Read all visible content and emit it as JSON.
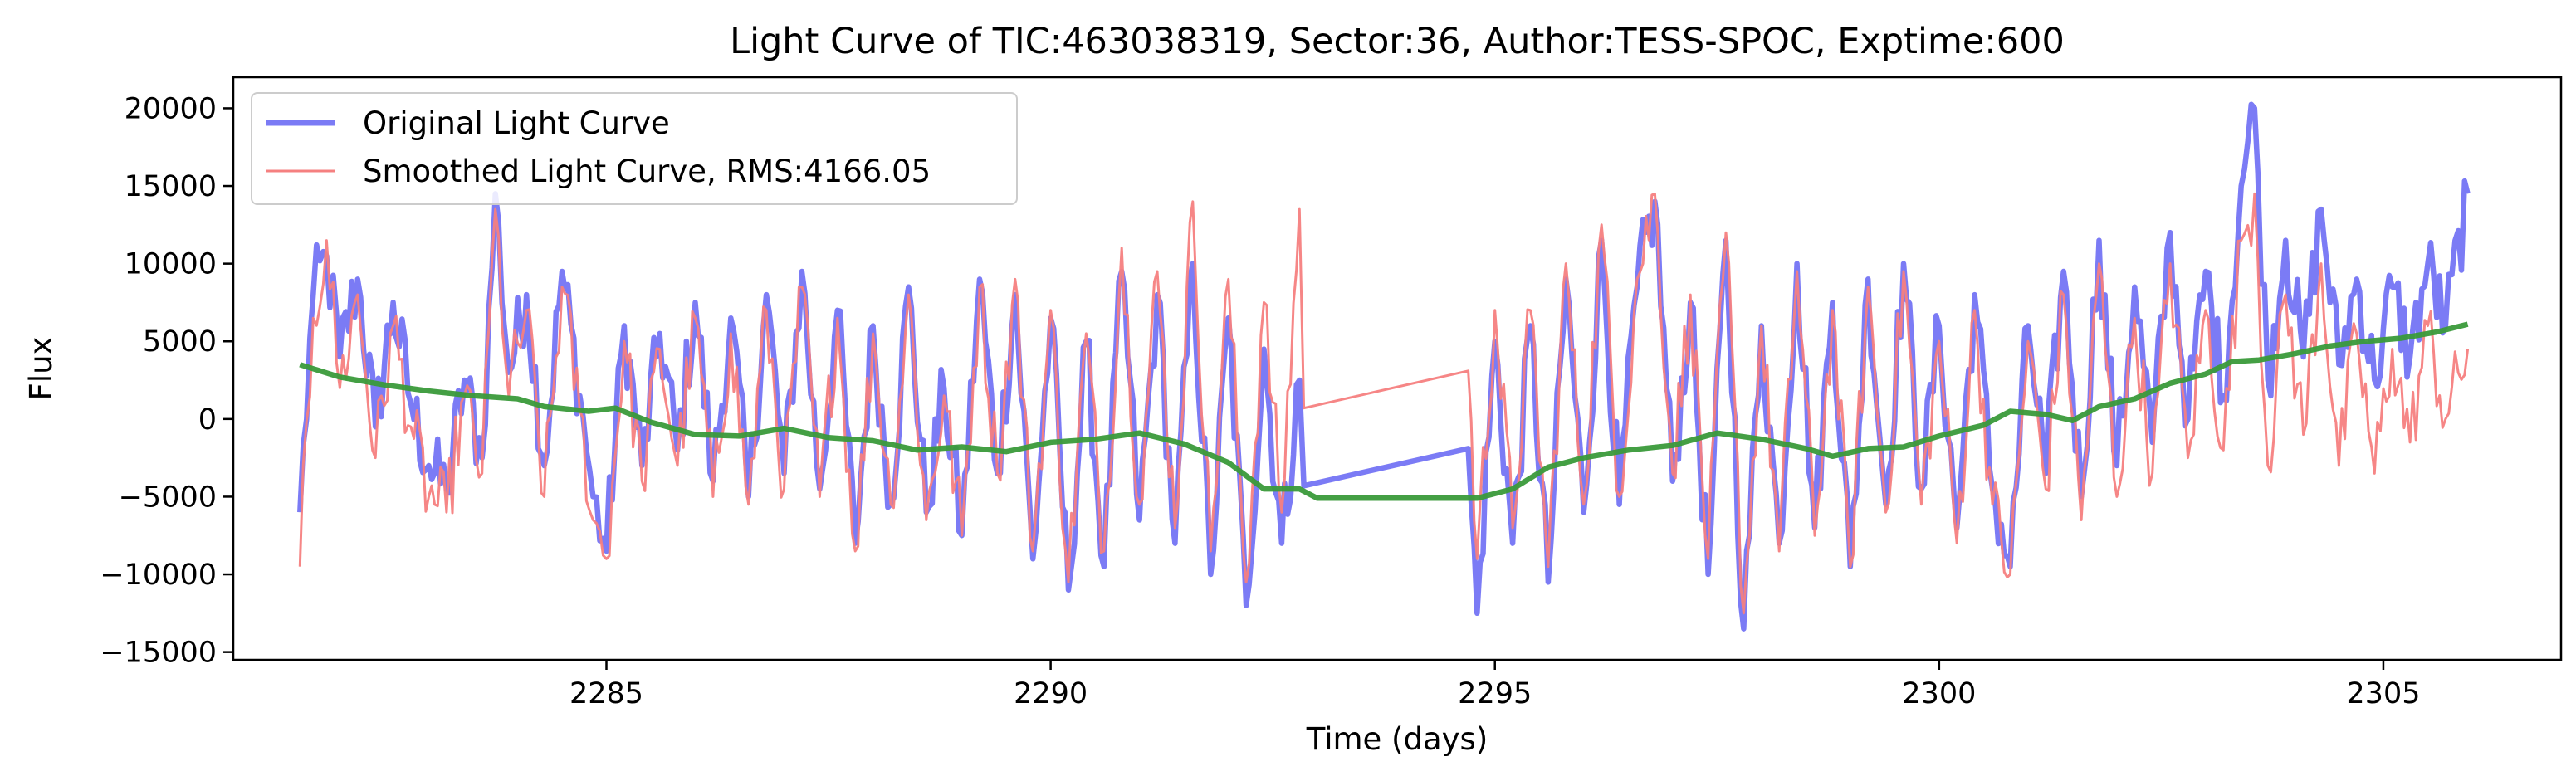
{
  "chart_data": {
    "type": "line",
    "title": "Light Curve of TIC:463038319, Sector:36, Author:TESS-SPOC, Exptime:600",
    "xlabel": "Time (days)",
    "ylabel": "Flux",
    "xlim": [
      2280.8,
      2307.0
    ],
    "ylim": [
      -15500,
      22000
    ],
    "xticks": [
      2285,
      2290,
      2295,
      2300,
      2305
    ],
    "xtick_labels": [
      "2285",
      "2290",
      "2295",
      "2300",
      "2305"
    ],
    "yticks": [
      -15000,
      -10000,
      -5000,
      0,
      5000,
      10000,
      15000,
      20000
    ],
    "ytick_labels": [
      "−15000",
      "−10000",
      "−5000",
      "0",
      "5000",
      "10000",
      "15000",
      "20000"
    ],
    "grid": false,
    "legend_position": "top-left",
    "series": [
      {
        "name": "Original Light Curve",
        "color": "#7b7bf5",
        "points": [
          [
            2281.55,
            -6000
          ],
          [
            2281.7,
            8000
          ],
          [
            2281.85,
            10500
          ],
          [
            2282.0,
            4000
          ],
          [
            2282.2,
            9000
          ],
          [
            2282.4,
            -500
          ],
          [
            2282.6,
            7500
          ],
          [
            2282.8,
            1000
          ],
          [
            2283.0,
            -3000
          ],
          [
            2283.2,
            -4500
          ],
          [
            2283.4,
            2500
          ],
          [
            2283.6,
            -2500
          ],
          [
            2283.75,
            14500
          ],
          [
            2283.9,
            3000
          ],
          [
            2284.1,
            8000
          ],
          [
            2284.3,
            -3000
          ],
          [
            2284.5,
            9500
          ],
          [
            2284.7,
            1500
          ],
          [
            2284.85,
            -5000
          ],
          [
            2285.0,
            -8500
          ],
          [
            2285.2,
            6000
          ],
          [
            2285.4,
            -3000
          ],
          [
            2285.6,
            5500
          ],
          [
            2285.8,
            -2000
          ],
          [
            2286.0,
            7500
          ],
          [
            2286.2,
            -4000
          ],
          [
            2286.4,
            6500
          ],
          [
            2286.6,
            -5000
          ],
          [
            2286.8,
            8000
          ],
          [
            2287.0,
            -3500
          ],
          [
            2287.2,
            9500
          ],
          [
            2287.4,
            -4500
          ],
          [
            2287.6,
            7000
          ],
          [
            2287.8,
            -8000
          ],
          [
            2288.0,
            6000
          ],
          [
            2288.2,
            -5500
          ],
          [
            2288.4,
            8500
          ],
          [
            2288.6,
            -6000
          ],
          [
            2288.8,
            2000
          ],
          [
            2289.0,
            -7500
          ],
          [
            2289.2,
            9000
          ],
          [
            2289.4,
            -3500
          ],
          [
            2289.6,
            8000
          ],
          [
            2289.8,
            -9000
          ],
          [
            2290.0,
            6500
          ],
          [
            2290.2,
            -11000
          ],
          [
            2290.4,
            5000
          ],
          [
            2290.6,
            -9500
          ],
          [
            2290.8,
            9500
          ],
          [
            2291.0,
            -6500
          ],
          [
            2291.2,
            8000
          ],
          [
            2291.4,
            -8000
          ],
          [
            2291.6,
            10000
          ],
          [
            2291.8,
            -10000
          ],
          [
            2292.0,
            6500
          ],
          [
            2292.2,
            -12000
          ],
          [
            2292.4,
            4500
          ],
          [
            2292.6,
            -8000
          ],
          [
            2292.8,
            2500
          ],
          [
            2292.85,
            -4300
          ],
          [
            2294.7,
            -1900
          ],
          [
            2294.8,
            -12500
          ],
          [
            2295.0,
            5000
          ],
          [
            2295.2,
            -8000
          ],
          [
            2295.4,
            6000
          ],
          [
            2295.6,
            -10500
          ],
          [
            2295.8,
            9000
          ],
          [
            2296.0,
            -6000
          ],
          [
            2296.2,
            11500
          ],
          [
            2296.4,
            -5500
          ],
          [
            2296.6,
            8500
          ],
          [
            2296.8,
            14000
          ],
          [
            2297.0,
            -4000
          ],
          [
            2297.2,
            7500
          ],
          [
            2297.4,
            -10000
          ],
          [
            2297.6,
            11500
          ],
          [
            2297.8,
            -13500
          ],
          [
            2298.0,
            6000
          ],
          [
            2298.2,
            -8000
          ],
          [
            2298.4,
            10000
          ],
          [
            2298.6,
            -7000
          ],
          [
            2298.8,
            7500
          ],
          [
            2299.0,
            -9500
          ],
          [
            2299.2,
            9000
          ],
          [
            2299.4,
            -5500
          ],
          [
            2299.6,
            10000
          ],
          [
            2299.8,
            -4500
          ],
          [
            2300.0,
            6000
          ],
          [
            2300.2,
            -7000
          ],
          [
            2300.4,
            8000
          ],
          [
            2300.6,
            -4500
          ],
          [
            2300.8,
            -9500
          ],
          [
            2301.0,
            6000
          ],
          [
            2301.2,
            -3500
          ],
          [
            2301.4,
            9500
          ],
          [
            2301.6,
            -5000
          ],
          [
            2301.8,
            11500
          ],
          [
            2302.0,
            -3000
          ],
          [
            2302.2,
            8500
          ],
          [
            2302.4,
            -1500
          ],
          [
            2302.6,
            12000
          ],
          [
            2302.8,
            0
          ],
          [
            2303.0,
            9500
          ],
          [
            2303.2,
            1500
          ],
          [
            2303.4,
            15000
          ],
          [
            2303.55,
            20000
          ],
          [
            2303.7,
            2500
          ],
          [
            2303.9,
            11500
          ],
          [
            2304.1,
            4000
          ],
          [
            2304.3,
            13500
          ],
          [
            2304.5,
            3500
          ],
          [
            2304.7,
            9000
          ],
          [
            2304.9,
            2500
          ],
          [
            2305.1,
            8500
          ],
          [
            2305.3,
            4000
          ],
          [
            2305.5,
            10000
          ],
          [
            2305.7,
            6000
          ],
          [
            2305.95,
            14500
          ]
        ]
      },
      {
        "name": "Smoothed Light Curve, RMS:4166.05",
        "color": "#f58080",
        "points": [
          [
            2281.55,
            -9500
          ],
          [
            2281.7,
            6500
          ],
          [
            2281.85,
            11500
          ],
          [
            2282.0,
            2000
          ],
          [
            2282.2,
            8000
          ],
          [
            2282.4,
            -2500
          ],
          [
            2282.6,
            6000
          ],
          [
            2282.8,
            -500
          ],
          [
            2283.0,
            -5000
          ],
          [
            2283.2,
            -6000
          ],
          [
            2283.4,
            1500
          ],
          [
            2283.6,
            -3500
          ],
          [
            2283.75,
            13500
          ],
          [
            2283.9,
            1500
          ],
          [
            2284.1,
            7000
          ],
          [
            2284.3,
            -5000
          ],
          [
            2284.5,
            8500
          ],
          [
            2284.7,
            500
          ],
          [
            2284.85,
            -6500
          ],
          [
            2285.0,
            -9000
          ],
          [
            2285.2,
            5000
          ],
          [
            2285.4,
            -4000
          ],
          [
            2285.6,
            4500
          ],
          [
            2285.8,
            -3000
          ],
          [
            2286.0,
            6500
          ],
          [
            2286.2,
            -5000
          ],
          [
            2286.4,
            5500
          ],
          [
            2286.6,
            -5500
          ],
          [
            2286.8,
            7000
          ],
          [
            2287.0,
            -4500
          ],
          [
            2287.2,
            8500
          ],
          [
            2287.4,
            -5000
          ],
          [
            2287.6,
            6500
          ],
          [
            2287.8,
            -8500
          ],
          [
            2288.0,
            5500
          ],
          [
            2288.2,
            -5500
          ],
          [
            2288.4,
            8000
          ],
          [
            2288.6,
            -6500
          ],
          [
            2288.8,
            1500
          ],
          [
            2289.0,
            -7500
          ],
          [
            2289.2,
            8500
          ],
          [
            2289.4,
            -3500
          ],
          [
            2289.6,
            9000
          ],
          [
            2289.8,
            -8500
          ],
          [
            2290.0,
            7000
          ],
          [
            2290.2,
            -10500
          ],
          [
            2290.4,
            5500
          ],
          [
            2290.6,
            -8500
          ],
          [
            2290.8,
            11000
          ],
          [
            2291.0,
            -5500
          ],
          [
            2291.2,
            9500
          ],
          [
            2291.4,
            -7000
          ],
          [
            2291.6,
            14000
          ],
          [
            2291.8,
            -8500
          ],
          [
            2292.0,
            9000
          ],
          [
            2292.2,
            -10500
          ],
          [
            2292.4,
            7500
          ],
          [
            2292.6,
            -6000
          ],
          [
            2292.8,
            13500
          ],
          [
            2292.85,
            700
          ],
          [
            2294.7,
            3100
          ],
          [
            2294.8,
            -9000
          ],
          [
            2295.0,
            7000
          ],
          [
            2295.2,
            -7000
          ],
          [
            2295.4,
            7000
          ],
          [
            2295.6,
            -9500
          ],
          [
            2295.8,
            10000
          ],
          [
            2296.0,
            -5500
          ],
          [
            2296.2,
            12500
          ],
          [
            2296.4,
            -5000
          ],
          [
            2296.6,
            9000
          ],
          [
            2296.8,
            14500
          ],
          [
            2297.0,
            -3500
          ],
          [
            2297.2,
            8000
          ],
          [
            2297.4,
            -9000
          ],
          [
            2297.6,
            12000
          ],
          [
            2297.8,
            -12500
          ],
          [
            2298.0,
            6000
          ],
          [
            2298.2,
            -8500
          ],
          [
            2298.4,
            9500
          ],
          [
            2298.6,
            -7500
          ],
          [
            2298.8,
            7000
          ],
          [
            2299.0,
            -9500
          ],
          [
            2299.2,
            8500
          ],
          [
            2299.4,
            -6000
          ],
          [
            2299.6,
            9500
          ],
          [
            2299.8,
            -5500
          ],
          [
            2300.0,
            5000
          ],
          [
            2300.2,
            -8000
          ],
          [
            2300.4,
            7000
          ],
          [
            2300.6,
            -5500
          ],
          [
            2300.8,
            -10000
          ],
          [
            2301.0,
            5000
          ],
          [
            2301.2,
            -4500
          ],
          [
            2301.4,
            8000
          ],
          [
            2301.6,
            -6500
          ],
          [
            2301.8,
            10000
          ],
          [
            2302.0,
            -5000
          ],
          [
            2302.2,
            6500
          ],
          [
            2302.4,
            -3500
          ],
          [
            2302.6,
            10000
          ],
          [
            2302.8,
            -2500
          ],
          [
            2303.0,
            7000
          ],
          [
            2303.2,
            -2000
          ],
          [
            2303.4,
            11500
          ],
          [
            2303.55,
            14500
          ],
          [
            2303.7,
            -3000
          ],
          [
            2303.9,
            8000
          ],
          [
            2304.1,
            -1000
          ],
          [
            2304.3,
            10000
          ],
          [
            2304.5,
            -3000
          ],
          [
            2304.7,
            5500
          ],
          [
            2304.9,
            -3500
          ],
          [
            2305.1,
            4500
          ],
          [
            2305.3,
            -1500
          ],
          [
            2305.5,
            6000
          ],
          [
            2305.7,
            0
          ],
          [
            2305.95,
            4500
          ]
        ]
      },
      {
        "name": "",
        "color": "#3a9a3a",
        "points": [
          [
            2281.55,
            3500
          ],
          [
            2282.0,
            2700
          ],
          [
            2282.5,
            2200
          ],
          [
            2283.0,
            1800
          ],
          [
            2283.5,
            1500
          ],
          [
            2284.0,
            1300
          ],
          [
            2284.3,
            800
          ],
          [
            2284.8,
            500
          ],
          [
            2285.1,
            700
          ],
          [
            2285.5,
            -200
          ],
          [
            2286.0,
            -1000
          ],
          [
            2286.5,
            -1100
          ],
          [
            2287.0,
            -600
          ],
          [
            2287.5,
            -1200
          ],
          [
            2288.0,
            -1400
          ],
          [
            2288.5,
            -2000
          ],
          [
            2289.0,
            -1800
          ],
          [
            2289.5,
            -2100
          ],
          [
            2290.0,
            -1500
          ],
          [
            2290.5,
            -1300
          ],
          [
            2291.0,
            -900
          ],
          [
            2291.5,
            -1600
          ],
          [
            2292.0,
            -2800
          ],
          [
            2292.4,
            -4500
          ],
          [
            2292.8,
            -4500
          ],
          [
            2293.0,
            -5100
          ],
          [
            2294.0,
            -5100
          ],
          [
            2294.8,
            -5100
          ],
          [
            2295.2,
            -4500
          ],
          [
            2295.6,
            -3100
          ],
          [
            2296.0,
            -2500
          ],
          [
            2296.5,
            -2000
          ],
          [
            2297.0,
            -1700
          ],
          [
            2297.5,
            -900
          ],
          [
            2298.0,
            -1300
          ],
          [
            2298.5,
            -1900
          ],
          [
            2298.8,
            -2400
          ],
          [
            2299.2,
            -1900
          ],
          [
            2299.6,
            -1800
          ],
          [
            2300.0,
            -1100
          ],
          [
            2300.5,
            -400
          ],
          [
            2300.8,
            500
          ],
          [
            2301.2,
            300
          ],
          [
            2301.5,
            -100
          ],
          [
            2301.8,
            800
          ],
          [
            2302.2,
            1300
          ],
          [
            2302.6,
            2300
          ],
          [
            2303.0,
            2900
          ],
          [
            2303.3,
            3700
          ],
          [
            2303.6,
            3800
          ],
          [
            2304.0,
            4200
          ],
          [
            2304.4,
            4700
          ],
          [
            2304.8,
            5000
          ],
          [
            2305.2,
            5200
          ],
          [
            2305.6,
            5600
          ],
          [
            2305.95,
            6100
          ]
        ]
      }
    ]
  }
}
